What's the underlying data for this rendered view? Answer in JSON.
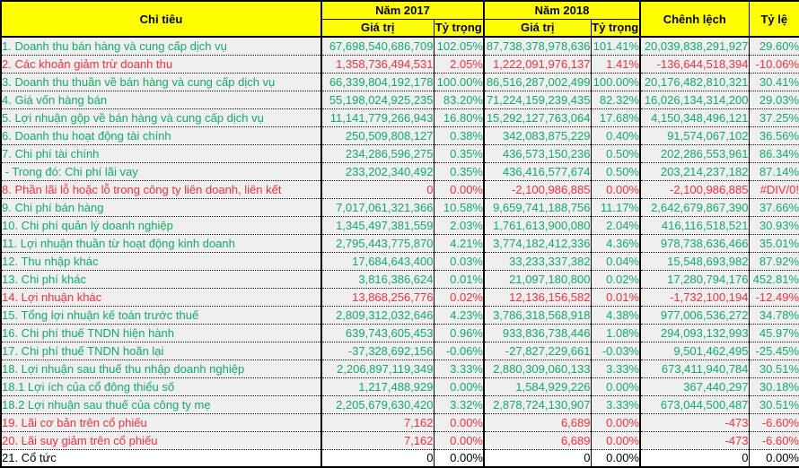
{
  "table": {
    "header": {
      "chi_tieu": "Chỉ tiêu",
      "nam2017": "Năm 2017",
      "nam2018": "Năm 2018",
      "gia_tri_2017": "Giá trị",
      "ty_trong_2017": "Tỷ trọng",
      "gia_tri_2018": "Giá trị",
      "ty_trong_2018": "Tỷ trọng",
      "chenh_lech": "Chênh lệch",
      "ty_le": "Tỷ lệ"
    },
    "colors": {
      "green": "#0fae66",
      "red": "#fc2e3e",
      "black": "#000000",
      "header_bg": "#ffff00",
      "row_bg": "#efefef",
      "last_row_bg": "#ffffff",
      "border": "#000000"
    },
    "rows": [
      {
        "label": "1. Doanh thu bán hàng và cung cấp dịch vụ",
        "v2017": "67,698,540,686,709",
        "p2017": "102.05%",
        "v2018": "87,738,378,978,636",
        "p2018": "101.41%",
        "diff": "20,039,838,291,927",
        "rate": "29.60%",
        "color": "green"
      },
      {
        "label": "2. Các khoản giảm trừ doanh thu",
        "v2017": "1,358,736,494,531",
        "p2017": "2.05%",
        "v2018": "1,222,091,976,137",
        "p2018": "1.41%",
        "diff": "-136,644,518,394",
        "rate": "-10.06%",
        "color": "red"
      },
      {
        "label": "3. Doanh thu thuần về bán hàng và cung cấp dịch vụ",
        "v2017": "66,339,804,192,178",
        "p2017": "100.00%",
        "v2018": "86,516,287,002,499",
        "p2018": "100.00%",
        "diff": "20,176,482,810,321",
        "rate": "30.41%",
        "color": "green"
      },
      {
        "label": "4. Giá vốn hàng bán",
        "v2017": "55,198,024,925,235",
        "p2017": "83.20%",
        "v2018": "71,224,159,239,435",
        "p2018": "82.32%",
        "diff": "16,026,134,314,200",
        "rate": "29.03%",
        "color": "green"
      },
      {
        "label": "5. Lợi nhuận gộp về bán hàng và cung cấp dịch vụ",
        "v2017": "11,141,779,266,943",
        "p2017": "16.80%",
        "v2018": "15,292,127,763,064",
        "p2018": "17.68%",
        "diff": "4,150,348,496,121",
        "rate": "37.25%",
        "color": "green"
      },
      {
        "label": "6. Doanh thu hoạt động tài chính",
        "v2017": "250,509,808,127",
        "p2017": "0.38%",
        "v2018": "342,083,875,229",
        "p2018": "0.40%",
        "diff": "91,574,067,102",
        "rate": "36.56%",
        "color": "green"
      },
      {
        "label": "7. Chi phí tài chính",
        "v2017": "234,286,596,275",
        "p2017": "0.35%",
        "v2018": "436,573,150,236",
        "p2018": "0.50%",
        "diff": "202,286,553,961",
        "rate": "86.34%",
        "color": "green"
      },
      {
        "label": " - Trong đó: Chi phí lãi vay",
        "v2017": "233,202,340,492",
        "p2017": "0.35%",
        "v2018": "436,416,577,674",
        "p2018": "0.50%",
        "diff": "203,214,237,182",
        "rate": "87.14%",
        "color": "green"
      },
      {
        "label": "8. Phần lãi lỗ hoặc lỗ trong công ty liên doanh, liên kết",
        "v2017": "0",
        "p2017": "0.00%",
        "v2018": "-2,100,986,885",
        "p2018": "0.00%",
        "diff": "-2,100,986,885",
        "rate": "#DIV/0!",
        "color": "red"
      },
      {
        "label": "9. Chi phí bán hàng",
        "v2017": "7,017,061,321,366",
        "p2017": "10.58%",
        "v2018": "9,659,741,188,756",
        "p2018": "11.17%",
        "diff": "2,642,679,867,390",
        "rate": "37.66%",
        "color": "green"
      },
      {
        "label": "10. Chi phí quản lý doanh nghiệp",
        "v2017": "1,345,497,381,559",
        "p2017": "2.03%",
        "v2018": "1,761,613,900,080",
        "p2018": "2.04%",
        "diff": "416,116,518,521",
        "rate": "30.93%",
        "color": "green"
      },
      {
        "label": "11. Lợi nhuận thuần từ hoạt động kinh doanh",
        "v2017": "2,795,443,775,870",
        "p2017": "4.21%",
        "v2018": "3,774,182,412,336",
        "p2018": "4.36%",
        "diff": "978,738,636,466",
        "rate": "35.01%",
        "color": "green"
      },
      {
        "label": "12. Thu nhập khác",
        "v2017": "17,684,643,400",
        "p2017": "0.03%",
        "v2018": "33,233,337,382",
        "p2018": "0.04%",
        "diff": "15,548,693,982",
        "rate": "87.92%",
        "color": "green"
      },
      {
        "label": "13. Chi phí khác",
        "v2017": "3,816,386,624",
        "p2017": "0.01%",
        "v2018": "21,097,180,800",
        "p2018": "0.02%",
        "diff": "17,280,794,176",
        "rate": "452.81%",
        "color": "green"
      },
      {
        "label": "14. Lợi nhuận khác",
        "v2017": "13,868,256,776",
        "p2017": "0.02%",
        "v2018": "12,136,156,582",
        "p2018": "0.01%",
        "diff": "-1,732,100,194",
        "rate": "-12.49%",
        "color": "red"
      },
      {
        "label": "15. Tổng lợi nhuận kế toán trước thuế",
        "v2017": "2,809,312,032,646",
        "p2017": "4.23%",
        "v2018": "3,786,318,568,918",
        "p2018": "4.38%",
        "diff": "977,006,536,272",
        "rate": "34.78%",
        "color": "green"
      },
      {
        "label": "16. Chi phí thuế TNDN hiện hành",
        "v2017": "639,743,605,453",
        "p2017": "0.96%",
        "v2018": "933,836,738,446",
        "p2018": "1.08%",
        "diff": "294,093,132,993",
        "rate": "45.97%",
        "color": "green"
      },
      {
        "label": "17. Chi phí thuế TNDN hoãn lại",
        "v2017": "-37,328,692,156",
        "p2017": "-0.06%",
        "v2018": "-27,827,229,661",
        "p2018": "-0.03%",
        "diff": "9,501,462,495",
        "rate": "-25.45%",
        "color": "green"
      },
      {
        "label": "18. Lợi nhuận sau thuế thu nhập doanh nghiệp",
        "v2017": "2,206,897,119,349",
        "p2017": "3.33%",
        "v2018": "2,880,309,060,133",
        "p2018": "3.33%",
        "diff": "673,411,940,784",
        "rate": "30.51%",
        "color": "green"
      },
      {
        "label": "18.1 Lợi ích của cổ đông thiểu số",
        "v2017": "1,217,488,929",
        "p2017": "0.00%",
        "v2018": "1,584,929,226",
        "p2018": "0.00%",
        "diff": "367,440,297",
        "rate": "30.18%",
        "color": "green"
      },
      {
        "label": "18.2 Lợi nhuận sau thuế của công ty mẹ",
        "v2017": "2,205,679,630,420",
        "p2017": "3.32%",
        "v2018": "2,878,724,130,907",
        "p2018": "3.33%",
        "diff": "673,044,500,487",
        "rate": "30.51%",
        "color": "green"
      },
      {
        "label": "19. Lãi cơ bản trên cổ phiếu",
        "v2017": "7,162",
        "p2017": "0.00%",
        "v2018": "6,689",
        "p2018": "0.00%",
        "diff": "-473",
        "rate": "-6.60%",
        "color": "red"
      },
      {
        "label": "20. Lãi suy giảm trên cổ phiếu",
        "v2017": "7,162",
        "p2017": "0.00%",
        "v2018": "6,689",
        "p2018": "0.00%",
        "diff": "-473",
        "rate": "-6.60%",
        "color": "red"
      },
      {
        "label": "21. Cổ tức",
        "v2017": "0",
        "p2017": "0.00%",
        "v2018": "0",
        "p2018": "0.00%",
        "diff": "0",
        "rate": "0.00%",
        "color": "black",
        "bg": "#ffffff"
      }
    ]
  }
}
